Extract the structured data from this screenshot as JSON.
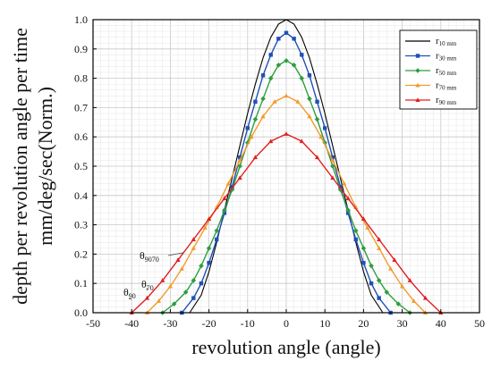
{
  "chart_data": {
    "type": "line",
    "title": "",
    "xlabel": "revolution angle (angle)",
    "ylabel_lines": [
      "depth per revolution angle per time",
      "mm/deg/sec(Norm.)"
    ],
    "xlim": [
      -50,
      50
    ],
    "ylim": [
      0,
      1.0
    ],
    "x_ticks": [
      -50,
      -40,
      -30,
      -20,
      -10,
      0,
      10,
      20,
      30,
      40,
      50
    ],
    "x_tick_labels": [
      "-50",
      "-40",
      "-30",
      "-20",
      "-10",
      "0",
      "10",
      "20",
      "30",
      "40",
      "50"
    ],
    "y_ticks": [
      0,
      0.1,
      0.2,
      0.3,
      0.4,
      0.5,
      0.6,
      0.7,
      0.8,
      0.9,
      1.0
    ],
    "y_tick_labels": [
      "0.0",
      "0.1",
      "0.2",
      "0.3",
      "0.4",
      "0.5",
      "0.6",
      "0.7",
      "0.8",
      "0.9",
      "1.0"
    ],
    "grid": true,
    "legend_position": "top-right",
    "series": [
      {
        "base": "r",
        "sub": "10 mm",
        "color": "#000000",
        "marker": "none",
        "x": [
          -25,
          -22,
          -20,
          -18,
          -16,
          -14,
          -12,
          -10,
          -8,
          -6,
          -4,
          -2,
          0,
          2,
          4,
          6,
          8,
          10,
          12,
          14,
          16,
          18,
          20,
          22,
          25
        ],
        "y": [
          0.0,
          0.06,
          0.14,
          0.24,
          0.35,
          0.46,
          0.57,
          0.68,
          0.78,
          0.87,
          0.94,
          0.985,
          1.0,
          0.985,
          0.94,
          0.87,
          0.78,
          0.68,
          0.57,
          0.46,
          0.35,
          0.24,
          0.14,
          0.06,
          0.0
        ]
      },
      {
        "base": "r",
        "sub": "30 mm",
        "color": "#1f4fb8",
        "marker": "square",
        "x": [
          -27,
          -24,
          -22,
          -20,
          -18,
          -16,
          -14,
          -12,
          -10,
          -8,
          -6,
          -4,
          -2,
          0,
          2,
          4,
          6,
          8,
          10,
          12,
          14,
          16,
          18,
          20,
          22,
          24,
          27
        ],
        "y": [
          0.0,
          0.05,
          0.1,
          0.17,
          0.25,
          0.34,
          0.43,
          0.53,
          0.63,
          0.72,
          0.81,
          0.88,
          0.935,
          0.955,
          0.935,
          0.88,
          0.81,
          0.72,
          0.63,
          0.53,
          0.43,
          0.34,
          0.25,
          0.17,
          0.1,
          0.05,
          0.0
        ]
      },
      {
        "base": "r",
        "sub": "50 mm",
        "color": "#2e9e3e",
        "marker": "diamond",
        "x": [
          -32,
          -29,
          -26,
          -24,
          -22,
          -20,
          -18,
          -16,
          -14,
          -12,
          -10,
          -8,
          -6,
          -4,
          -2,
          0,
          2,
          4,
          6,
          8,
          10,
          12,
          14,
          16,
          18,
          20,
          22,
          24,
          26,
          29,
          32
        ],
        "y": [
          0.0,
          0.03,
          0.07,
          0.11,
          0.16,
          0.22,
          0.28,
          0.35,
          0.42,
          0.5,
          0.58,
          0.66,
          0.73,
          0.8,
          0.845,
          0.86,
          0.845,
          0.8,
          0.73,
          0.66,
          0.58,
          0.5,
          0.42,
          0.35,
          0.28,
          0.22,
          0.16,
          0.11,
          0.07,
          0.03,
          0.0
        ]
      },
      {
        "base": "r",
        "sub": "70 mm",
        "color": "#f39a2b",
        "marker": "triangle",
        "x": [
          -36,
          -33,
          -30,
          -27,
          -24,
          -21,
          -18,
          -15,
          -12,
          -9,
          -6,
          -3,
          0,
          3,
          6,
          9,
          12,
          15,
          18,
          21,
          24,
          27,
          30,
          33,
          36
        ],
        "y": [
          0.0,
          0.04,
          0.09,
          0.15,
          0.22,
          0.29,
          0.36,
          0.44,
          0.52,
          0.6,
          0.67,
          0.72,
          0.74,
          0.72,
          0.67,
          0.6,
          0.52,
          0.44,
          0.36,
          0.29,
          0.22,
          0.15,
          0.09,
          0.04,
          0.0
        ]
      },
      {
        "base": "r",
        "sub": "90 mm",
        "color": "#e02020",
        "marker": "triangle",
        "x": [
          -40,
          -36,
          -32,
          -28,
          -24,
          -20,
          -16,
          -12,
          -8,
          -4,
          0,
          4,
          8,
          12,
          16,
          20,
          24,
          28,
          32,
          36,
          40
        ],
        "y": [
          0.0,
          0.05,
          0.11,
          0.18,
          0.25,
          0.32,
          0.39,
          0.46,
          0.53,
          0.585,
          0.61,
          0.585,
          0.53,
          0.46,
          0.39,
          0.32,
          0.25,
          0.18,
          0.11,
          0.05,
          0.0
        ]
      }
    ],
    "annotations": [
      {
        "base": "θ",
        "sub": "9070",
        "x": -26.5,
        "y": 0.205
      },
      {
        "base": "θ",
        "sub": "70",
        "x": -36,
        "y": 0.085
      },
      {
        "base": "θ",
        "sub": "90",
        "x": -40,
        "y": 0.045
      }
    ]
  }
}
